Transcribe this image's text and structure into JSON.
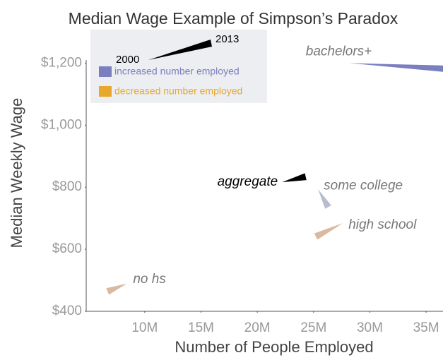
{
  "chart_data": {
    "type": "wedge",
    "title": "Median Wage Example of Simpson’s Paradox",
    "x_label": "Number of People Employed",
    "y_label": "Median Weekly Wage",
    "xlim": [
      4.8,
      36.5
    ],
    "ylim": [
      400,
      1210
    ],
    "xticks": [
      {
        "value": 10,
        "label": "10M"
      },
      {
        "value": 15,
        "label": "15M"
      },
      {
        "value": 20,
        "label": "20M"
      },
      {
        "value": 25,
        "label": "25M"
      },
      {
        "value": 30,
        "label": "30M"
      },
      {
        "value": 35,
        "label": "35M"
      }
    ],
    "yticks": [
      {
        "value": 400,
        "label": "$400"
      },
      {
        "value": 600,
        "label": "$600"
      },
      {
        "value": 800,
        "label": "$800"
      },
      {
        "value": 1000,
        "label": "$1,000"
      },
      {
        "value": 1200,
        "label": "$1,200"
      }
    ],
    "legend": {
      "start_label": "2000",
      "end_label": "2013",
      "items": [
        {
          "label": "increased number employed",
          "color": "#7a7fc0"
        },
        {
          "label": "decreased number employed",
          "color": "#e8a92a"
        }
      ]
    },
    "series": [
      {
        "name": "bachelors+",
        "color": "#7a7fc0",
        "x": [
          28.2,
          37.5
        ],
        "values": [
          1200,
          1180
        ]
      },
      {
        "name": "aggregate",
        "color": "#000000",
        "x": [
          22.2,
          24.3
        ],
        "values": [
          816,
          834
        ]
      },
      {
        "name": "some college",
        "color": "#b8bccc",
        "x": [
          25.4,
          26.3
        ],
        "values": [
          793,
          736
        ]
      },
      {
        "name": "high school",
        "color": "#d9b9a0",
        "x": [
          27.6,
          25.2
        ],
        "values": [
          684,
          641
        ]
      },
      {
        "name": "no hs",
        "color": "#d9b9a0",
        "x": [
          8.4,
          6.7
        ],
        "values": [
          489,
          464
        ]
      }
    ]
  }
}
